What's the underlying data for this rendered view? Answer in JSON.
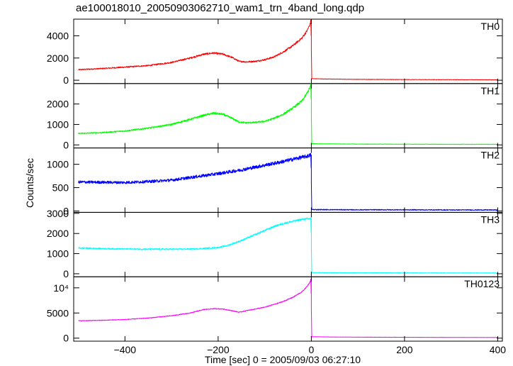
{
  "chart_data": {
    "type": "line",
    "title": "ae100018010_20050903062710_wam1_trn_4band_long.qdp",
    "xlabel": "Time [sec] 0 = 2005/09/03 06:27:10",
    "ylabel": "Counts/sec",
    "xlim": [
      -510,
      410
    ],
    "xticks": [
      -400,
      -200,
      0,
      200,
      400
    ],
    "grid": false,
    "panels": [
      {
        "name": "TH0",
        "color": "#ff0000",
        "ylim": [
          -300,
          5500
        ],
        "yticks": [
          0,
          2000,
          4000
        ],
        "ytick_labels": [
          "0",
          "2000",
          "4000"
        ],
        "noise": 50,
        "x": [
          -500,
          -450,
          -400,
          -350,
          -300,
          -260,
          -230,
          -210,
          -190,
          -170,
          -155,
          -140,
          -120,
          -100,
          -80,
          -60,
          -40,
          -20,
          -10,
          -3,
          -1,
          1,
          30,
          100,
          200,
          300,
          400
        ],
        "y": [
          950,
          1050,
          1180,
          1320,
          1600,
          2000,
          2350,
          2450,
          2350,
          2050,
          1700,
          1650,
          1700,
          1850,
          2100,
          2550,
          3100,
          3800,
          4400,
          5000,
          5400,
          140,
          110,
          80,
          60,
          50,
          40
        ]
      },
      {
        "name": "TH1",
        "color": "#00ff00",
        "ylim": [
          -150,
          3000
        ],
        "yticks": [
          0,
          1000,
          2000
        ],
        "ytick_labels": [
          "0",
          "1000",
          "2000"
        ],
        "noise": 30,
        "x": [
          -500,
          -450,
          -400,
          -350,
          -300,
          -260,
          -230,
          -210,
          -190,
          -170,
          -155,
          -140,
          -120,
          -100,
          -80,
          -60,
          -40,
          -20,
          -10,
          -3,
          -1,
          1,
          30,
          100,
          200,
          300,
          400
        ],
        "y": [
          560,
          600,
          680,
          820,
          1000,
          1250,
          1450,
          1550,
          1500,
          1300,
          1120,
          1080,
          1100,
          1150,
          1300,
          1500,
          1800,
          2150,
          2500,
          2800,
          2950,
          60,
          50,
          40,
          35,
          30,
          30
        ]
      },
      {
        "name": "TH2",
        "color": "#0000ff",
        "ylim": [
          -30,
          1350
        ],
        "yticks": [
          0,
          500,
          1000
        ],
        "ytick_labels": [
          "0",
          "500",
          "1000"
        ],
        "noise": 30,
        "x": [
          -500,
          -450,
          -400,
          -350,
          -300,
          -250,
          -200,
          -150,
          -100,
          -60,
          -30,
          -10,
          -1,
          1,
          30,
          100,
          200,
          300,
          400
        ],
        "y": [
          620,
          615,
          610,
          630,
          660,
          730,
          800,
          880,
          980,
          1060,
          1130,
          1170,
          1200,
          30,
          28,
          25,
          25,
          22,
          22
        ]
      },
      {
        "name": "TH3",
        "color": "#00ffff",
        "ylim": [
          -150,
          3050
        ],
        "yticks": [
          0,
          1000,
          2000,
          3000
        ],
        "ytick_labels": [
          "0",
          "1000",
          "2000",
          "3000"
        ],
        "noise": 35,
        "x": [
          -500,
          -450,
          -400,
          -350,
          -300,
          -250,
          -200,
          -180,
          -150,
          -120,
          -100,
          -80,
          -60,
          -40,
          -20,
          -1,
          1,
          30,
          100,
          200,
          300,
          400
        ],
        "y": [
          1280,
          1250,
          1230,
          1220,
          1220,
          1230,
          1300,
          1400,
          1650,
          1950,
          2150,
          2350,
          2500,
          2600,
          2700,
          2750,
          60,
          55,
          50,
          45,
          40,
          40
        ]
      },
      {
        "name": "TH0123",
        "color": "#ff00ff",
        "ylim": [
          -600,
          12200
        ],
        "yticks": [
          0,
          5000,
          10000
        ],
        "ytick_labels": [
          "0",
          "5000",
          "10⁴"
        ],
        "noise": 60,
        "x": [
          -500,
          -450,
          -400,
          -350,
          -300,
          -260,
          -230,
          -210,
          -190,
          -170,
          -155,
          -140,
          -120,
          -100,
          -80,
          -60,
          -40,
          -20,
          -10,
          -3,
          -1,
          1,
          30,
          100,
          200,
          300,
          400
        ],
        "y": [
          3450,
          3550,
          3700,
          4000,
          4450,
          5000,
          5700,
          5850,
          5800,
          5450,
          5150,
          5450,
          5800,
          6150,
          6700,
          7300,
          8100,
          9200,
          10200,
          11100,
          11700,
          280,
          240,
          200,
          170,
          150,
          140
        ]
      }
    ]
  }
}
